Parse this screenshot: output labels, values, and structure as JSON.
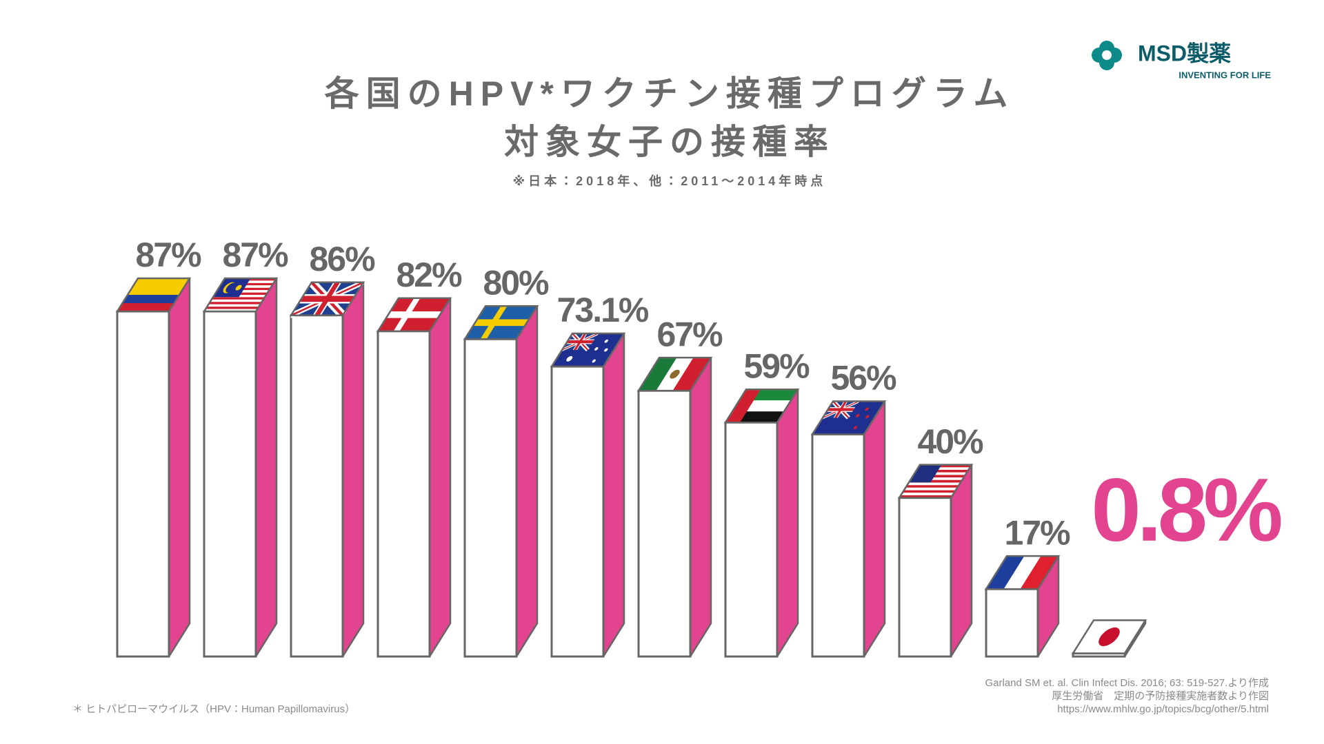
{
  "logo": {
    "name": "MSD製薬",
    "tagline": "INVENTING FOR LIFE"
  },
  "chart_data": {
    "type": "bar",
    "title": [
      "各国のHPV*ワクチン接種プログラム",
      "対象女子の接種率"
    ],
    "subtitle": "※日本：2018年、他：2011～2014年時点",
    "values": [
      87,
      87,
      86,
      82,
      80,
      73.1,
      67,
      59,
      56,
      40,
      17,
      0.8
    ],
    "value_labels": [
      "87%",
      "87%",
      "86%",
      "82%",
      "80%",
      "73.1%",
      "67%",
      "59%",
      "56%",
      "40%",
      "17%",
      "0.8%"
    ],
    "color": "#ffffff",
    "side_color": "#e2448f",
    "label_colors": [
      "#666666",
      "#666666",
      "#666666",
      "#666666",
      "#666666",
      "#666666",
      "#666666",
      "#666666",
      "#666666",
      "#666666",
      "#666666",
      "#e2448f"
    ]
  },
  "footnote": "＊ ヒトパピローマウイルス（HPV：Human Papillomavirus）",
  "sources": [
    "Garland SM et. al. Clin Infect Dis. 2016; 63: 519-527.より作成",
    "厚生労働省　定期の予防接種実施者数より作図",
    "https://www.mhlw.go.jp/topics/bcg/other/5.html"
  ]
}
